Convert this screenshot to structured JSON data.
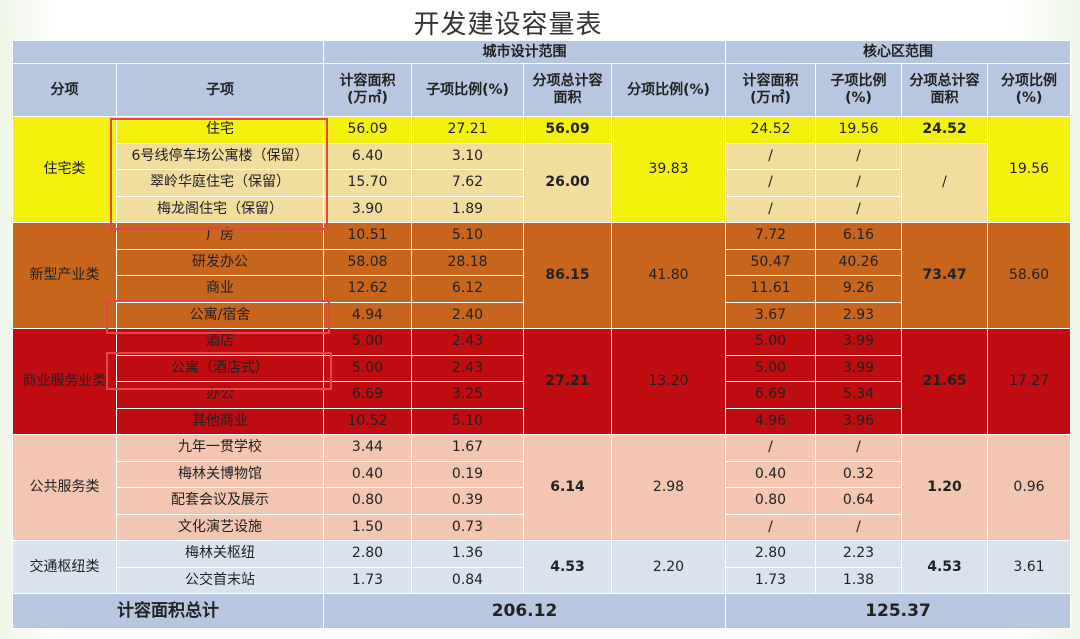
{
  "title": "开发建设容量表",
  "header": {
    "col_category": "分项",
    "col_subitem": "子项",
    "group_city": "城市设计范围",
    "group_core": "核心区范围",
    "city_area": "计容面积\n(万㎡)",
    "city_ratio": "子项比例(%)",
    "city_total": "分项总计容\n面积",
    "city_cat_ratio": "分项比例(%)",
    "core_area": "计容面积\n(万㎡)",
    "core_ratio": "子项比例\n(%)",
    "core_total": "分项总计容\n面积",
    "core_cat_ratio": "分项比例\n(%)"
  },
  "rows": [
    {
      "sub": "住宅",
      "c_area": "56.09",
      "c_ratio": "27.21",
      "k_area": "24.52",
      "k_ratio": "19.56"
    },
    {
      "sub": "6号线停车场公寓楼（保留）",
      "c_area": "6.40",
      "c_ratio": "3.10",
      "k_area": "/",
      "k_ratio": "/"
    },
    {
      "sub": "翠岭华庭住宅（保留）",
      "c_area": "15.70",
      "c_ratio": "7.62",
      "k_area": "/",
      "k_ratio": "/"
    },
    {
      "sub": "梅龙阁住宅（保留）",
      "c_area": "3.90",
      "c_ratio": "1.89",
      "k_area": "/",
      "k_ratio": "/"
    },
    {
      "sub": "厂房",
      "c_area": "10.51",
      "c_ratio": "5.10",
      "k_area": "7.72",
      "k_ratio": "6.16"
    },
    {
      "sub": "研发办公",
      "c_area": "58.08",
      "c_ratio": "28.18",
      "k_area": "50.47",
      "k_ratio": "40.26"
    },
    {
      "sub": "商业",
      "c_area": "12.62",
      "c_ratio": "6.12",
      "k_area": "11.61",
      "k_ratio": "9.26"
    },
    {
      "sub": "公寓/宿舍",
      "c_area": "4.94",
      "c_ratio": "2.40",
      "k_area": "3.67",
      "k_ratio": "2.93"
    },
    {
      "sub": "酒店",
      "c_area": "5.00",
      "c_ratio": "2.43",
      "k_area": "5.00",
      "k_ratio": "3.99"
    },
    {
      "sub": "公寓（酒店式）",
      "c_area": "5.00",
      "c_ratio": "2.43",
      "k_area": "5.00",
      "k_ratio": "3.99"
    },
    {
      "sub": "办公",
      "c_area": "6.69",
      "c_ratio": "3.25",
      "k_area": "6.69",
      "k_ratio": "5.34"
    },
    {
      "sub": "其他商业",
      "c_area": "10.52",
      "c_ratio": "5.10",
      "k_area": "4.96",
      "k_ratio": "3.96"
    },
    {
      "sub": "九年一贯学校",
      "c_area": "3.44",
      "c_ratio": "1.67",
      "k_area": "/",
      "k_ratio": "/"
    },
    {
      "sub": "梅林关博物馆",
      "c_area": "0.40",
      "c_ratio": "0.19",
      "k_area": "0.40",
      "k_ratio": "0.32"
    },
    {
      "sub": "配套会议及展示",
      "c_area": "0.80",
      "c_ratio": "0.39",
      "k_area": "0.80",
      "k_ratio": "0.64"
    },
    {
      "sub": "文化演艺设施",
      "c_area": "1.50",
      "c_ratio": "0.73",
      "k_area": "/",
      "k_ratio": "/"
    },
    {
      "sub": "梅林关枢纽",
      "c_area": "2.80",
      "c_ratio": "1.36",
      "k_area": "2.80",
      "k_ratio": "2.23"
    },
    {
      "sub": "公交首末站",
      "c_area": "1.73",
      "c_ratio": "0.84",
      "k_area": "1.73",
      "k_ratio": "1.38"
    }
  ],
  "categories": [
    {
      "name": "住宅类",
      "c_total_first": "56.09",
      "c_total": "26.00",
      "c_ratio": "39.83",
      "k_total_first": "24.52",
      "k_total": "/",
      "k_ratio": "19.56"
    },
    {
      "name": "新型产业类",
      "c_total": "86.15",
      "c_ratio": "41.80",
      "k_total": "73.47",
      "k_ratio": "58.60"
    },
    {
      "name": "商业服务业类",
      "c_total": "27.21",
      "c_ratio": "13.20",
      "k_total": "21.65",
      "k_ratio": "17.27"
    },
    {
      "name": "公共服务类",
      "c_total": "6.14",
      "c_ratio": "2.98",
      "k_total": "1.20",
      "k_ratio": "0.96"
    },
    {
      "name": "交通枢纽类",
      "c_total": "4.53",
      "c_ratio": "2.20",
      "k_total": "4.53",
      "k_ratio": "3.61"
    }
  ],
  "footer": {
    "label": "计容面积总计",
    "city_total": "206.12",
    "core_total": "125.37"
  },
  "colors": {
    "header": "#b7c6e1",
    "residential_highlight": "#f4f10e",
    "residential": "#f2dd9e",
    "industrial": "#c8651d",
    "commercial": "#c00d11",
    "public": "#f2c6b1",
    "transport": "#d9e3ee",
    "highlight_box": "#e04848"
  }
}
